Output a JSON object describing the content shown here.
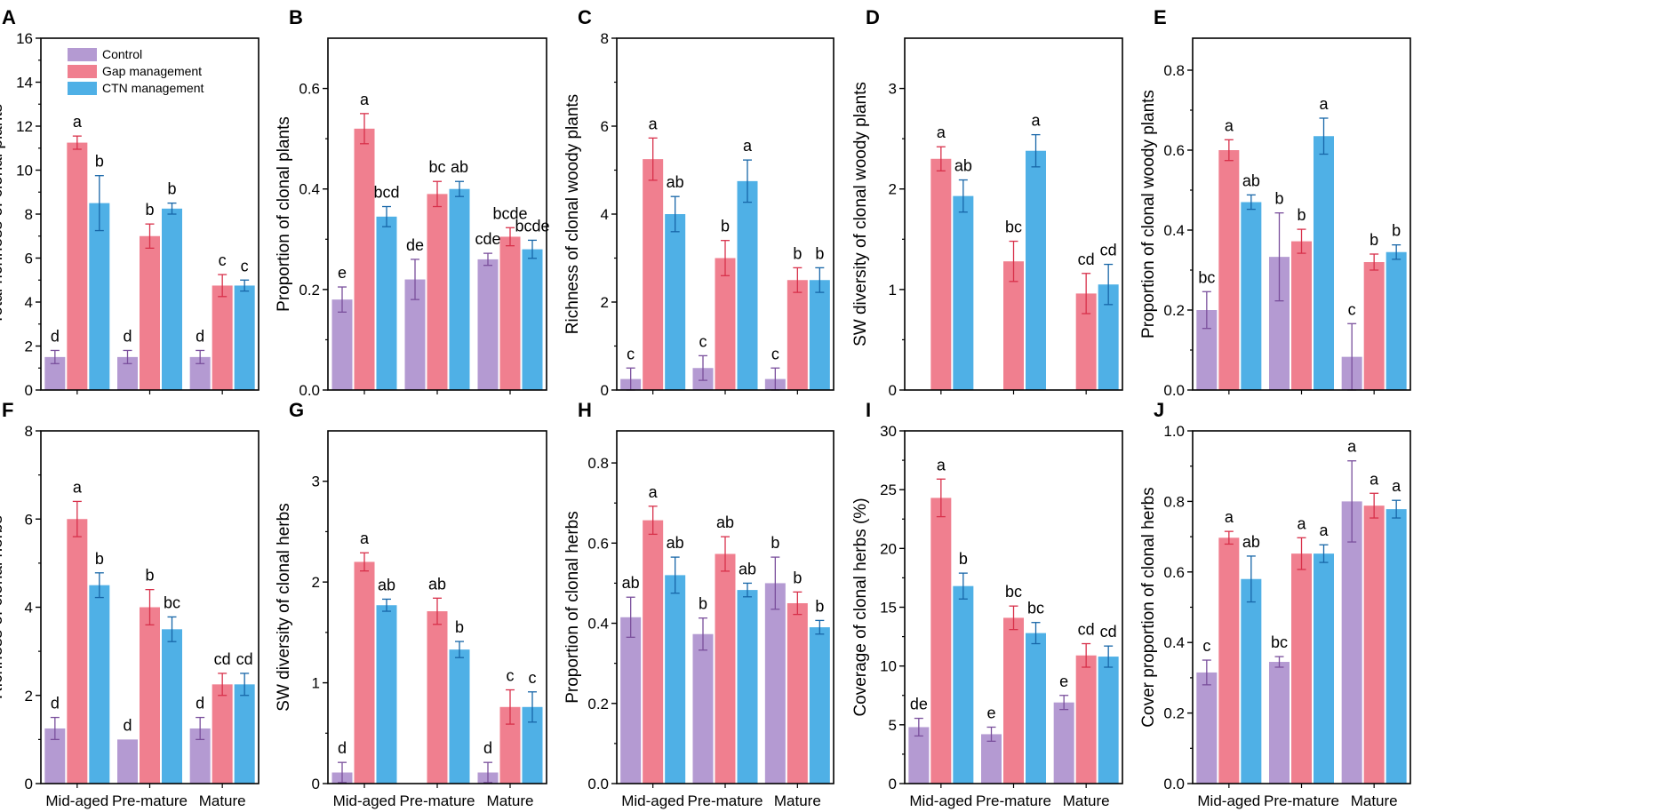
{
  "figure": {
    "groups": [
      "Mid-aged",
      "Pre-mature",
      "Mature"
    ],
    "legend": [
      "Control",
      "Gap management",
      "CTN management"
    ]
  },
  "colors": {
    "control": "#B49AD2",
    "control_err": "#7A4F9C",
    "gap": "#F07F8F",
    "gap_err": "#D8304A",
    "ctn": "#4FB0E6",
    "ctn_err": "#1766A8"
  },
  "chart_data": [
    {
      "id": "A",
      "type": "bar",
      "ylabel": "Total richness of clonal plants",
      "ylim": [
        0,
        16
      ],
      "yticks": [
        0,
        2,
        4,
        6,
        8,
        10,
        12,
        14,
        16
      ],
      "tick_labels": [
        "0",
        "2",
        "4",
        "6",
        "8",
        "10",
        "12",
        "14",
        "16"
      ],
      "categories": [
        "Mid-aged",
        "Pre-mature",
        "Mature"
      ],
      "series": [
        {
          "name": "Control",
          "values": [
            1.5,
            1.5,
            1.5
          ],
          "errors": [
            0.3,
            0.3,
            0.3
          ],
          "letters": [
            "d",
            "d",
            "d"
          ]
        },
        {
          "name": "Gap management",
          "values": [
            11.25,
            7.0,
            4.75
          ],
          "errors": [
            0.3,
            0.55,
            0.5
          ],
          "letters": [
            "a",
            "b",
            "c"
          ]
        },
        {
          "name": "CTN management",
          "values": [
            8.5,
            8.25,
            4.75
          ],
          "errors": [
            1.25,
            0.25,
            0.25
          ],
          "letters": [
            "b",
            "b",
            "c"
          ]
        }
      ]
    },
    {
      "id": "B",
      "type": "bar",
      "ylabel": "Proportion of clonal plants",
      "ylim": [
        0,
        0.7
      ],
      "yticks": [
        0,
        0.2,
        0.4,
        0.6
      ],
      "tick_labels": [
        "0.0",
        "0.2",
        "0.4",
        "0.6"
      ],
      "categories": [
        "Mid-aged",
        "Pre-mature",
        "Mature"
      ],
      "series": [
        {
          "name": "Control",
          "values": [
            0.18,
            0.22,
            0.26
          ],
          "errors": [
            0.025,
            0.04,
            0.012
          ],
          "letters": [
            "e",
            "de",
            "cde"
          ]
        },
        {
          "name": "Gap management",
          "values": [
            0.52,
            0.39,
            0.305
          ],
          "errors": [
            0.03,
            0.025,
            0.018
          ],
          "letters": [
            "a",
            "bc",
            "bcde"
          ]
        },
        {
          "name": "CTN management",
          "values": [
            0.345,
            0.4,
            0.28
          ],
          "errors": [
            0.02,
            0.015,
            0.018
          ],
          "letters": [
            "bcd",
            "ab",
            "bcde"
          ]
        }
      ]
    },
    {
      "id": "C",
      "type": "bar",
      "ylabel": "Richness of clonal woody plants",
      "ylim": [
        0,
        8
      ],
      "yticks": [
        0,
        2,
        4,
        6,
        8
      ],
      "tick_labels": [
        "0",
        "2",
        "4",
        "6",
        "8"
      ],
      "categories": [
        "Mid-aged",
        "Pre-mature",
        "Mature"
      ],
      "series": [
        {
          "name": "Control",
          "values": [
            0.25,
            0.5,
            0.25
          ],
          "errors": [
            0.25,
            0.28,
            0.25
          ],
          "letters": [
            "c",
            "c",
            "c"
          ]
        },
        {
          "name": "Gap management",
          "values": [
            5.25,
            3.0,
            2.5
          ],
          "errors": [
            0.48,
            0.4,
            0.28
          ],
          "letters": [
            "a",
            "b",
            "b"
          ]
        },
        {
          "name": "CTN management",
          "values": [
            4.0,
            4.75,
            2.5
          ],
          "errors": [
            0.4,
            0.48,
            0.28
          ],
          "letters": [
            "ab",
            "a",
            "b"
          ]
        }
      ]
    },
    {
      "id": "D",
      "type": "bar",
      "ylabel": "SW diversity of clonal woody plants",
      "ylim": [
        0,
        3.5
      ],
      "yticks": [
        0,
        1,
        2,
        3
      ],
      "tick_labels": [
        "0",
        "1",
        "2",
        "3"
      ],
      "categories": [
        "Mid-aged",
        "Pre-mature",
        "Mature"
      ],
      "series": [
        {
          "name": "Control",
          "values": [
            0,
            0,
            0
          ],
          "errors": [
            0,
            0,
            0
          ],
          "letters": [
            "",
            "",
            ""
          ]
        },
        {
          "name": "Gap management",
          "values": [
            2.3,
            1.28,
            0.96
          ],
          "errors": [
            0.12,
            0.2,
            0.2
          ],
          "letters": [
            "a",
            "bc",
            "cd"
          ]
        },
        {
          "name": "CTN management",
          "values": [
            1.93,
            2.38,
            1.05
          ],
          "errors": [
            0.16,
            0.16,
            0.2
          ],
          "letters": [
            "ab",
            "a",
            "cd"
          ]
        }
      ]
    },
    {
      "id": "E",
      "type": "bar",
      "ylabel": "Proportion of clonal woody plants",
      "ylim": [
        0,
        0.88
      ],
      "yticks": [
        0,
        0.2,
        0.4,
        0.6,
        0.8
      ],
      "tick_labels": [
        "0.0",
        "0.2",
        "0.4",
        "0.6",
        "0.8"
      ],
      "categories": [
        "Mid-aged",
        "Pre-mature",
        "Mature"
      ],
      "series": [
        {
          "name": "Control",
          "values": [
            0.2,
            0.333,
            0.083
          ],
          "errors": [
            0.046,
            0.11,
            0.083
          ],
          "letters": [
            "bc",
            "b",
            "c"
          ]
        },
        {
          "name": "Gap management",
          "values": [
            0.6,
            0.372,
            0.32
          ],
          "errors": [
            0.026,
            0.03,
            0.02
          ],
          "letters": [
            "a",
            "b",
            "b"
          ]
        },
        {
          "name": "CTN management",
          "values": [
            0.47,
            0.635,
            0.345
          ],
          "errors": [
            0.018,
            0.045,
            0.018
          ],
          "letters": [
            "ab",
            "a",
            "b"
          ]
        }
      ]
    },
    {
      "id": "F",
      "type": "bar",
      "ylabel": "Richness of clonal herbs",
      "ylim": [
        0,
        8
      ],
      "yticks": [
        0,
        2,
        4,
        6,
        8
      ],
      "tick_labels": [
        "0",
        "2",
        "4",
        "6",
        "8"
      ],
      "categories": [
        "Mid-aged",
        "Pre-mature",
        "Mature"
      ],
      "series": [
        {
          "name": "Control",
          "values": [
            1.25,
            1.0,
            1.25
          ],
          "errors": [
            0.25,
            0,
            0.25
          ],
          "letters": [
            "d",
            "d",
            "d"
          ]
        },
        {
          "name": "Gap management",
          "values": [
            6.0,
            4.0,
            2.25
          ],
          "errors": [
            0.4,
            0.4,
            0.25
          ],
          "letters": [
            "a",
            "b",
            "cd"
          ]
        },
        {
          "name": "CTN management",
          "values": [
            4.5,
            3.5,
            2.25
          ],
          "errors": [
            0.28,
            0.28,
            0.25
          ],
          "letters": [
            "b",
            "bc",
            "cd"
          ]
        }
      ]
    },
    {
      "id": "G",
      "type": "bar",
      "ylabel": "SW diversity of clonal herbs",
      "ylim": [
        0,
        3.5
      ],
      "yticks": [
        0,
        1,
        2,
        3
      ],
      "tick_labels": [
        "0",
        "1",
        "2",
        "3"
      ],
      "categories": [
        "Mid-aged",
        "Pre-mature",
        "Mature"
      ],
      "series": [
        {
          "name": "Control",
          "values": [
            0.11,
            0,
            0.11
          ],
          "errors": [
            0.1,
            0,
            0.1
          ],
          "letters": [
            "d",
            "",
            "d"
          ]
        },
        {
          "name": "Gap management",
          "values": [
            2.2,
            1.71,
            0.76
          ],
          "errors": [
            0.09,
            0.13,
            0.17
          ],
          "letters": [
            "a",
            "ab",
            "c"
          ]
        },
        {
          "name": "CTN management",
          "values": [
            1.77,
            1.33,
            0.76
          ],
          "errors": [
            0.06,
            0.08,
            0.15
          ],
          "letters": [
            "ab",
            "b",
            "c"
          ]
        }
      ]
    },
    {
      "id": "H",
      "type": "bar",
      "ylabel": "Proportion of clonal herbs",
      "ylim": [
        0,
        0.88
      ],
      "yticks": [
        0,
        0.2,
        0.4,
        0.6,
        0.8
      ],
      "tick_labels": [
        "0.0",
        "0.2",
        "0.4",
        "0.6",
        "0.8"
      ],
      "categories": [
        "Mid-aged",
        "Pre-mature",
        "Mature"
      ],
      "series": [
        {
          "name": "Control",
          "values": [
            0.415,
            0.373,
            0.5
          ],
          "errors": [
            0.05,
            0.04,
            0.065
          ],
          "letters": [
            "ab",
            "b",
            "b"
          ]
        },
        {
          "name": "Gap management",
          "values": [
            0.657,
            0.573,
            0.45
          ],
          "errors": [
            0.035,
            0.043,
            0.028
          ],
          "letters": [
            "a",
            "ab",
            "b"
          ]
        },
        {
          "name": "CTN management",
          "values": [
            0.52,
            0.483,
            0.39
          ],
          "errors": [
            0.045,
            0.017,
            0.017
          ],
          "letters": [
            "ab",
            "ab",
            "b"
          ]
        }
      ]
    },
    {
      "id": "I",
      "type": "bar",
      "ylabel": "Coverage of clonal herbs (%)",
      "ylim": [
        0,
        30
      ],
      "yticks": [
        0,
        5,
        10,
        15,
        20,
        25,
        30
      ],
      "tick_labels": [
        "0",
        "5",
        "10",
        "15",
        "20",
        "25",
        "30"
      ],
      "categories": [
        "Mid-aged",
        "Pre-mature",
        "Mature"
      ],
      "series": [
        {
          "name": "Control",
          "values": [
            4.8,
            4.2,
            6.9
          ],
          "errors": [
            0.75,
            0.6,
            0.6
          ],
          "letters": [
            "de",
            "e",
            "e"
          ]
        },
        {
          "name": "Gap management",
          "values": [
            24.3,
            14.1,
            10.9
          ],
          "errors": [
            1.6,
            1.0,
            1.0
          ],
          "letters": [
            "a",
            "bc",
            "cd"
          ]
        },
        {
          "name": "CTN management",
          "values": [
            16.8,
            12.8,
            10.8
          ],
          "errors": [
            1.1,
            0.9,
            0.9
          ],
          "letters": [
            "b",
            "bc",
            "cd"
          ]
        }
      ]
    },
    {
      "id": "J",
      "type": "bar",
      "ylabel": "Cover proportion of clonal herbs",
      "ylim": [
        0,
        1.0
      ],
      "yticks": [
        0,
        0.2,
        0.4,
        0.6,
        0.8,
        1.0
      ],
      "tick_labels": [
        "0.0",
        "0.2",
        "0.4",
        "0.6",
        "0.8",
        "1.0"
      ],
      "categories": [
        "Mid-aged",
        "Pre-mature",
        "Mature"
      ],
      "series": [
        {
          "name": "Control",
          "values": [
            0.315,
            0.345,
            0.8
          ],
          "errors": [
            0.035,
            0.015,
            0.115
          ],
          "letters": [
            "c",
            "bc",
            "a"
          ]
        },
        {
          "name": "Gap management",
          "values": [
            0.697,
            0.652,
            0.788
          ],
          "errors": [
            0.018,
            0.045,
            0.035
          ],
          "letters": [
            "a",
            "a",
            "a"
          ]
        },
        {
          "name": "CTN management",
          "values": [
            0.58,
            0.652,
            0.778
          ],
          "errors": [
            0.065,
            0.025,
            0.025
          ],
          "letters": [
            "ab",
            "a",
            "a"
          ]
        }
      ]
    }
  ]
}
